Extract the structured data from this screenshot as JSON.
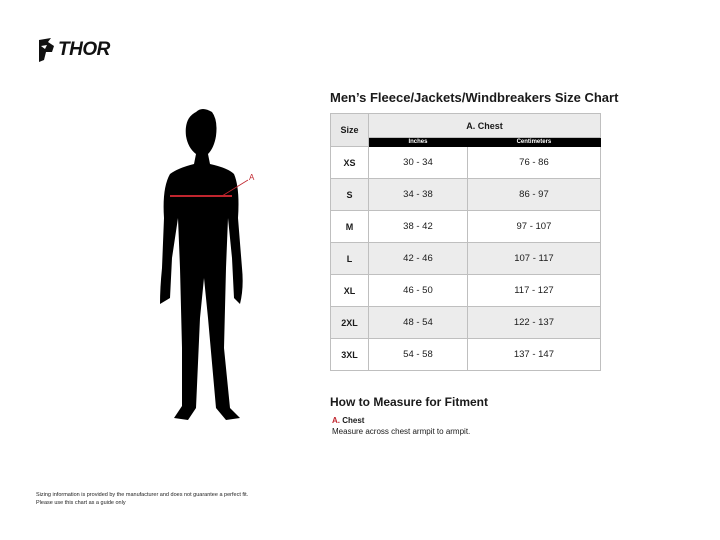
{
  "brand": {
    "name": "THOR"
  },
  "chart_title": "Men’s Fleece/Jackets/Windbreakers Size Chart",
  "table": {
    "size_header": "Size",
    "group_header": "A. Chest",
    "sub_headers": [
      "Inches",
      "Centimeters"
    ],
    "rows": [
      {
        "size": "XS",
        "inches": "30 - 34",
        "cm": "76 - 86"
      },
      {
        "size": "S",
        "inches": "34 - 38",
        "cm": "86 - 97"
      },
      {
        "size": "M",
        "inches": "38 - 42",
        "cm": "97 - 107"
      },
      {
        "size": "L",
        "inches": "42 - 46",
        "cm": "107 - 117"
      },
      {
        "size": "XL",
        "inches": "46 - 50",
        "cm": "117 - 127"
      },
      {
        "size": "2XL",
        "inches": "48 - 54",
        "cm": "122 - 137"
      },
      {
        "size": "3XL",
        "inches": "54 - 58",
        "cm": "137 - 147"
      }
    ]
  },
  "figure": {
    "marker_label": "A",
    "marker_color": "#c0252e"
  },
  "howto": {
    "title": "How to Measure for Fitment",
    "letter": "A.",
    "label": "Chest",
    "description": "Measure across chest armpit to armpit."
  },
  "footer": {
    "line1": "Sizing information is provided by the manufacturer and does not guarantee a perfect fit.",
    "line2": "Please use this chart as a guide only"
  }
}
